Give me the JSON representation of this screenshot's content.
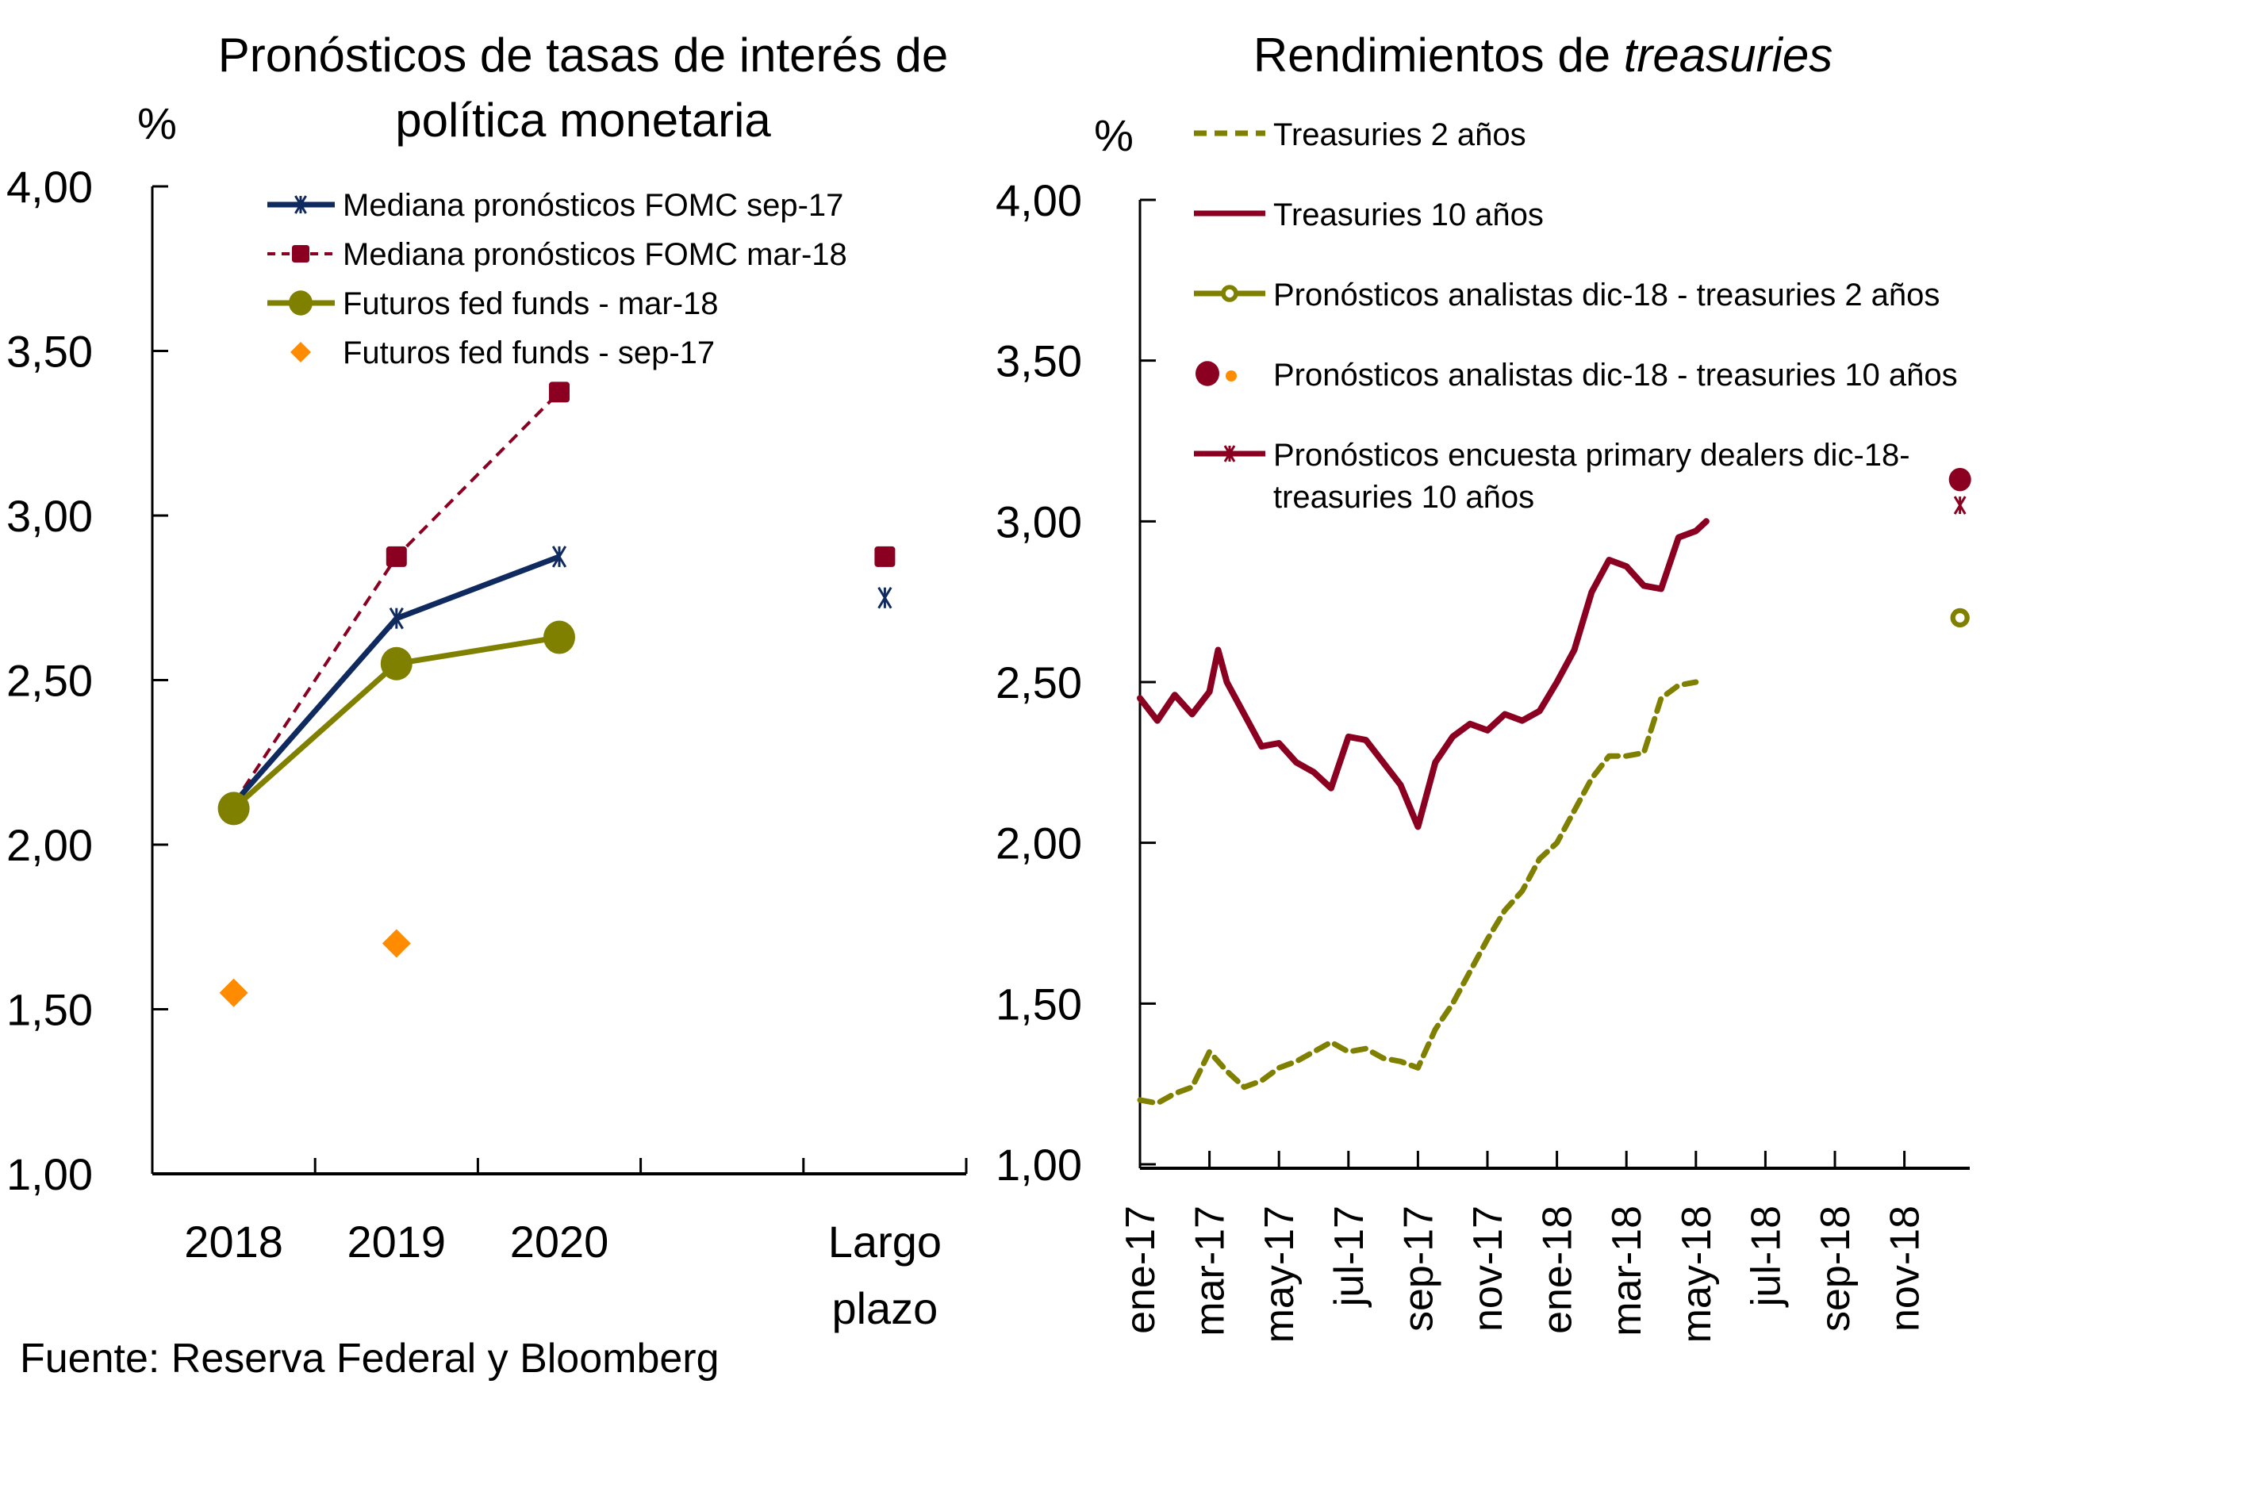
{
  "source_note": "Fuente: Reserva Federal y Bloomberg",
  "chart_data": [
    {
      "type": "line",
      "title": "Pronósticos de tasas de interés de política monetaria",
      "title_lines": [
        "Pronósticos de tasas de interés de",
        "política monetaria"
      ],
      "ylabel": "%",
      "xlabel": "",
      "ylim": [
        1.0,
        4.0
      ],
      "yticks": [
        1.0,
        1.5,
        2.0,
        2.5,
        3.0,
        3.5,
        4.0
      ],
      "ytick_labels": [
        "1,00",
        "1,50",
        "2,00",
        "2,50",
        "3,00",
        "3,50",
        "4,00"
      ],
      "categories": [
        "2018",
        "2019",
        "2020",
        "",
        "Largo plazo"
      ],
      "category_label_lines": [
        [
          "2018"
        ],
        [
          "2019"
        ],
        [
          "2020"
        ],
        [
          ""
        ],
        [
          "Largo",
          "plazo"
        ]
      ],
      "legend_position": "top",
      "grid": false,
      "series": [
        {
          "name": "Mediana pronósticos FOMC sep-17",
          "style": "solid",
          "marker": "asterisk",
          "color": "#0F2A5F",
          "values": [
            2.125,
            2.6875,
            2.875,
            null,
            2.75
          ]
        },
        {
          "name": "Mediana pronósticos FOMC mar-18",
          "style": "dashed",
          "marker": "square",
          "color": "#8B0020",
          "values": [
            2.125,
            2.875,
            3.375,
            null,
            2.875
          ]
        },
        {
          "name": "Futuros fed funds - mar-18",
          "style": "solid",
          "marker": "circle",
          "color": "#808000",
          "values": [
            2.11,
            2.55,
            2.63,
            null,
            null
          ]
        },
        {
          "name": "Futuros fed funds - sep-17",
          "style": "none",
          "marker": "diamond",
          "color": "#FF8C00",
          "values": [
            1.55,
            1.7,
            null,
            null,
            null
          ]
        }
      ]
    },
    {
      "type": "line",
      "title": "Rendimientos de treasuries",
      "title_plain": "Rendimientos de ",
      "title_italic": "treasuries",
      "ylabel": "%",
      "xlabel": "",
      "ylim": [
        1.0,
        4.0
      ],
      "yticks": [
        1.0,
        1.5,
        2.0,
        2.5,
        3.0,
        3.5,
        4.0
      ],
      "ytick_labels": [
        "1,00",
        "1,50",
        "2,00",
        "2,50",
        "3,00",
        "3,50",
        "4,00"
      ],
      "x_unit": "months since ene-17",
      "xlim": [
        0,
        24
      ],
      "xticks": [
        0,
        2,
        4,
        6,
        8,
        10,
        12,
        14,
        16,
        18,
        20,
        22
      ],
      "xtick_labels": [
        "ene-17",
        "mar-17",
        "may-17",
        "jul-17",
        "sep-17",
        "nov-17",
        "ene-18",
        "mar-18",
        "may-18",
        "jul-18",
        "sep-18",
        "nov-18"
      ],
      "legend_position": "top",
      "grid": false,
      "series": [
        {
          "name": "Treasuries 2 años",
          "style": "dashed",
          "color": "#808000",
          "x": [
            0,
            0.5,
            1,
            1.5,
            2,
            2.5,
            3,
            3.5,
            4,
            4.5,
            5,
            5.5,
            6,
            6.5,
            7,
            7.5,
            8,
            8.5,
            9,
            9.5,
            10,
            10.5,
            11,
            11.5,
            12,
            12.5,
            13,
            13.5,
            14,
            14.5,
            15,
            15.5,
            16
          ],
          "values": [
            1.2,
            1.19,
            1.22,
            1.24,
            1.35,
            1.29,
            1.24,
            1.26,
            1.3,
            1.32,
            1.35,
            1.38,
            1.35,
            1.36,
            1.33,
            1.32,
            1.3,
            1.42,
            1.5,
            1.6,
            1.7,
            1.79,
            1.85,
            1.95,
            2.0,
            2.1,
            2.2,
            2.27,
            2.27,
            2.28,
            2.45,
            2.49,
            2.5
          ]
        },
        {
          "name": "Treasuries 10 años",
          "style": "solid",
          "color": "#8B0020",
          "x": [
            0,
            0.5,
            1,
            1.5,
            2,
            2.25,
            2.5,
            3,
            3.5,
            4,
            4.5,
            5,
            5.5,
            6,
            6.5,
            7,
            7.5,
            8,
            8.5,
            9,
            9.5,
            10,
            10.5,
            11,
            11.5,
            12,
            12.5,
            13,
            13.5,
            14,
            14.5,
            15,
            15.5,
            16,
            16.3
          ],
          "values": [
            2.45,
            2.38,
            2.46,
            2.4,
            2.47,
            2.6,
            2.5,
            2.4,
            2.3,
            2.31,
            2.25,
            2.22,
            2.17,
            2.33,
            2.32,
            2.25,
            2.18,
            2.05,
            2.25,
            2.33,
            2.37,
            2.35,
            2.4,
            2.38,
            2.41,
            2.5,
            2.6,
            2.78,
            2.88,
            2.86,
            2.8,
            2.79,
            2.95,
            2.97,
            3.0
          ]
        },
        {
          "name": "Pronósticos analistas dic-18 -  treasuries 2 años",
          "style": "none",
          "marker": "ring",
          "color": "#808000",
          "x": [
            23.6
          ],
          "values": [
            2.7
          ]
        },
        {
          "name": "Pronósticos analistas dic-18 - treasuries 10 años",
          "style": "none",
          "marker": "circle",
          "color": "#8B0020",
          "x": [
            23.6
          ],
          "values": [
            3.13
          ]
        },
        {
          "name": "Pronósticos encuesta primary dealers dic-18- treasuries 10 años",
          "style": "none",
          "marker": "asterisk",
          "color": "#8B0020",
          "x": [
            23.6
          ],
          "values": [
            3.05
          ]
        }
      ],
      "legend_labels": [
        [
          "Treasuries 2 años"
        ],
        [
          "Treasuries 10 años"
        ],
        [
          "Pronósticos analistas dic-18 -  treasuries 2 años"
        ],
        [
          "Pronósticos analistas dic-18 - treasuries 10 años"
        ],
        [
          "Pronósticos encuesta primary dealers dic-18-",
          "treasuries 10 años"
        ]
      ]
    }
  ]
}
